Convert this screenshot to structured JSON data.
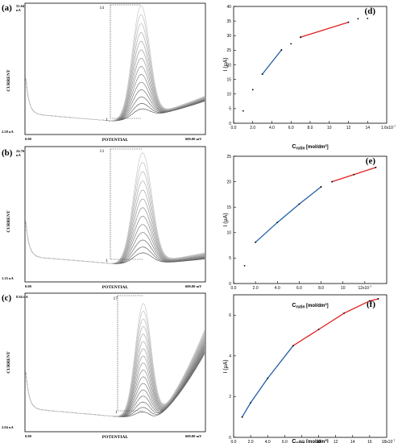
{
  "voltammograms": [
    {
      "id": "a",
      "panel_label": "(a)",
      "top_value": "55.04",
      "top_unit": "nA",
      "bottom_value": "2.58 nA",
      "x_left": "0.00",
      "x_right": "600.00 mV",
      "x_title": "POTENTIAL",
      "y_title": "CURRENT",
      "bracket_top": "14",
      "bracket_bottom": "1"
    },
    {
      "id": "b",
      "panel_label": "(b)",
      "top_value": "24.76",
      "top_unit": "nA",
      "bottom_value": "1.35 nA",
      "x_left": "0.00",
      "x_right": "600.00 mV",
      "x_title": "POTENTIAL",
      "y_title": "CURRENT",
      "bracket_top": "13",
      "bracket_bottom": "1"
    },
    {
      "id": "c",
      "panel_label": "(c)",
      "top_value": "8.94 nA",
      "top_unit": "",
      "bottom_value": "2.04 nA",
      "x_left": "0.00",
      "x_right": "600.00 mV",
      "x_title": "POTENTIAL",
      "y_title": "CURRENT",
      "bracket_top": "17",
      "bracket_bottom": "1"
    }
  ],
  "chart_data": [
    {
      "id": "d",
      "panel_label": "(d)",
      "type": "scatter",
      "ylabel": "I (μA)",
      "xlabel": "C",
      "xlabel_sub": "rutin",
      "xlabel_unit": "[mol/dm",
      "xlabel_sup": "3",
      "xlabel_end": "]",
      "xlim": [
        0,
        16
      ],
      "ylim": [
        0,
        40
      ],
      "x_ticks": [
        0,
        2,
        4,
        6,
        8,
        10,
        12,
        14
      ],
      "x_tick_labels": [
        "0.0",
        "2.0",
        "4.0",
        "6.0",
        "8.0",
        "10",
        "12",
        "14"
      ],
      "x_tick_exp": "1.6x10",
      "x_tick_exp_sup": "-7",
      "y_ticks": [
        0,
        5,
        10,
        15,
        20,
        25,
        30,
        35,
        40
      ],
      "y_tick_labels": [
        "0",
        "5",
        "10",
        "15",
        "20",
        "25",
        "30",
        "35",
        "40"
      ],
      "points": [
        [
          1,
          4.2
        ],
        [
          2,
          11.5
        ],
        [
          3,
          16.8
        ],
        [
          5,
          25.1
        ],
        [
          6,
          27.2
        ],
        [
          7,
          29.4
        ],
        [
          13,
          35.8
        ],
        [
          14,
          35.9
        ]
      ],
      "fits": [
        {
          "color": "#1f5fa8",
          "points": [
            [
              3,
              16.8
            ],
            [
              5,
              25.1
            ]
          ]
        },
        {
          "color": "#e02020",
          "points": [
            [
              7,
              29.5
            ],
            [
              12,
              34.6
            ]
          ]
        }
      ]
    },
    {
      "id": "e",
      "panel_label": "(e)",
      "type": "scatter",
      "ylabel": "I (μA)",
      "xlabel": "C",
      "xlabel_sub": "rutin",
      "xlabel_unit": "[mol/dm",
      "xlabel_sup": "3",
      "xlabel_end": "]",
      "xlim": [
        0,
        14
      ],
      "ylim": [
        0,
        25
      ],
      "x_ticks": [
        0,
        2,
        4,
        6,
        8,
        10,
        12
      ],
      "x_tick_labels": [
        "0.0",
        "2.0",
        "4.0",
        "6.0",
        "8.0",
        "10",
        "12x10"
      ],
      "x_tick_exp_sup": "-7",
      "y_ticks": [
        0,
        5,
        10,
        15,
        20,
        25
      ],
      "y_tick_labels": [
        "0",
        "5",
        "10",
        "15",
        "20",
        "25"
      ],
      "points": [
        [
          1,
          3.5
        ],
        [
          2,
          8.1
        ],
        [
          8,
          19.0
        ],
        [
          9,
          20.0
        ],
        [
          11,
          21.4
        ],
        [
          13,
          22.8
        ]
      ],
      "fits": [
        {
          "color": "#1f5fa8",
          "points": [
            [
              2,
              8.1
            ],
            [
              4,
              12.0
            ],
            [
              6,
              15.6
            ],
            [
              8,
              19.0
            ]
          ]
        },
        {
          "color": "#e02020",
          "points": [
            [
              9,
              20.0
            ],
            [
              11,
              21.4
            ],
            [
              13,
              22.8
            ]
          ]
        }
      ]
    },
    {
      "id": "f",
      "panel_label": "(f)",
      "type": "scatter",
      "ylabel": "I (μA)",
      "xlabel": "C",
      "xlabel_sub": "rutin",
      "xlabel_unit": "[mol/dm",
      "xlabel_sup": "3",
      "xlabel_end": "]",
      "xlim": [
        0,
        18
      ],
      "ylim": [
        0,
        7
      ],
      "x_ticks": [
        0,
        2,
        4,
        6,
        8,
        10,
        12,
        14,
        16
      ],
      "x_tick_labels": [
        "0.0",
        "2.0",
        "4.0",
        "6.0",
        "8.0",
        "10",
        "12",
        "14",
        "16"
      ],
      "x_tick_exp": "18x10",
      "x_tick_exp_sup": "-7",
      "y_ticks": [
        0,
        2,
        4,
        6
      ],
      "y_tick_labels": [
        "0",
        "2",
        "4",
        "6"
      ],
      "points": [
        [
          1,
          1.0
        ],
        [
          17,
          6.8
        ]
      ],
      "fits": [
        {
          "color": "#1f5fa8",
          "points": [
            [
              1,
              1.0
            ],
            [
              2,
              1.7
            ],
            [
              4,
              2.9
            ],
            [
              7,
              4.5
            ]
          ]
        },
        {
          "color": "#e02020",
          "points": [
            [
              7,
              4.5
            ],
            [
              10,
              5.3
            ],
            [
              13,
              6.1
            ],
            [
              16,
              6.7
            ],
            [
              17,
              6.8
            ]
          ]
        }
      ]
    }
  ]
}
